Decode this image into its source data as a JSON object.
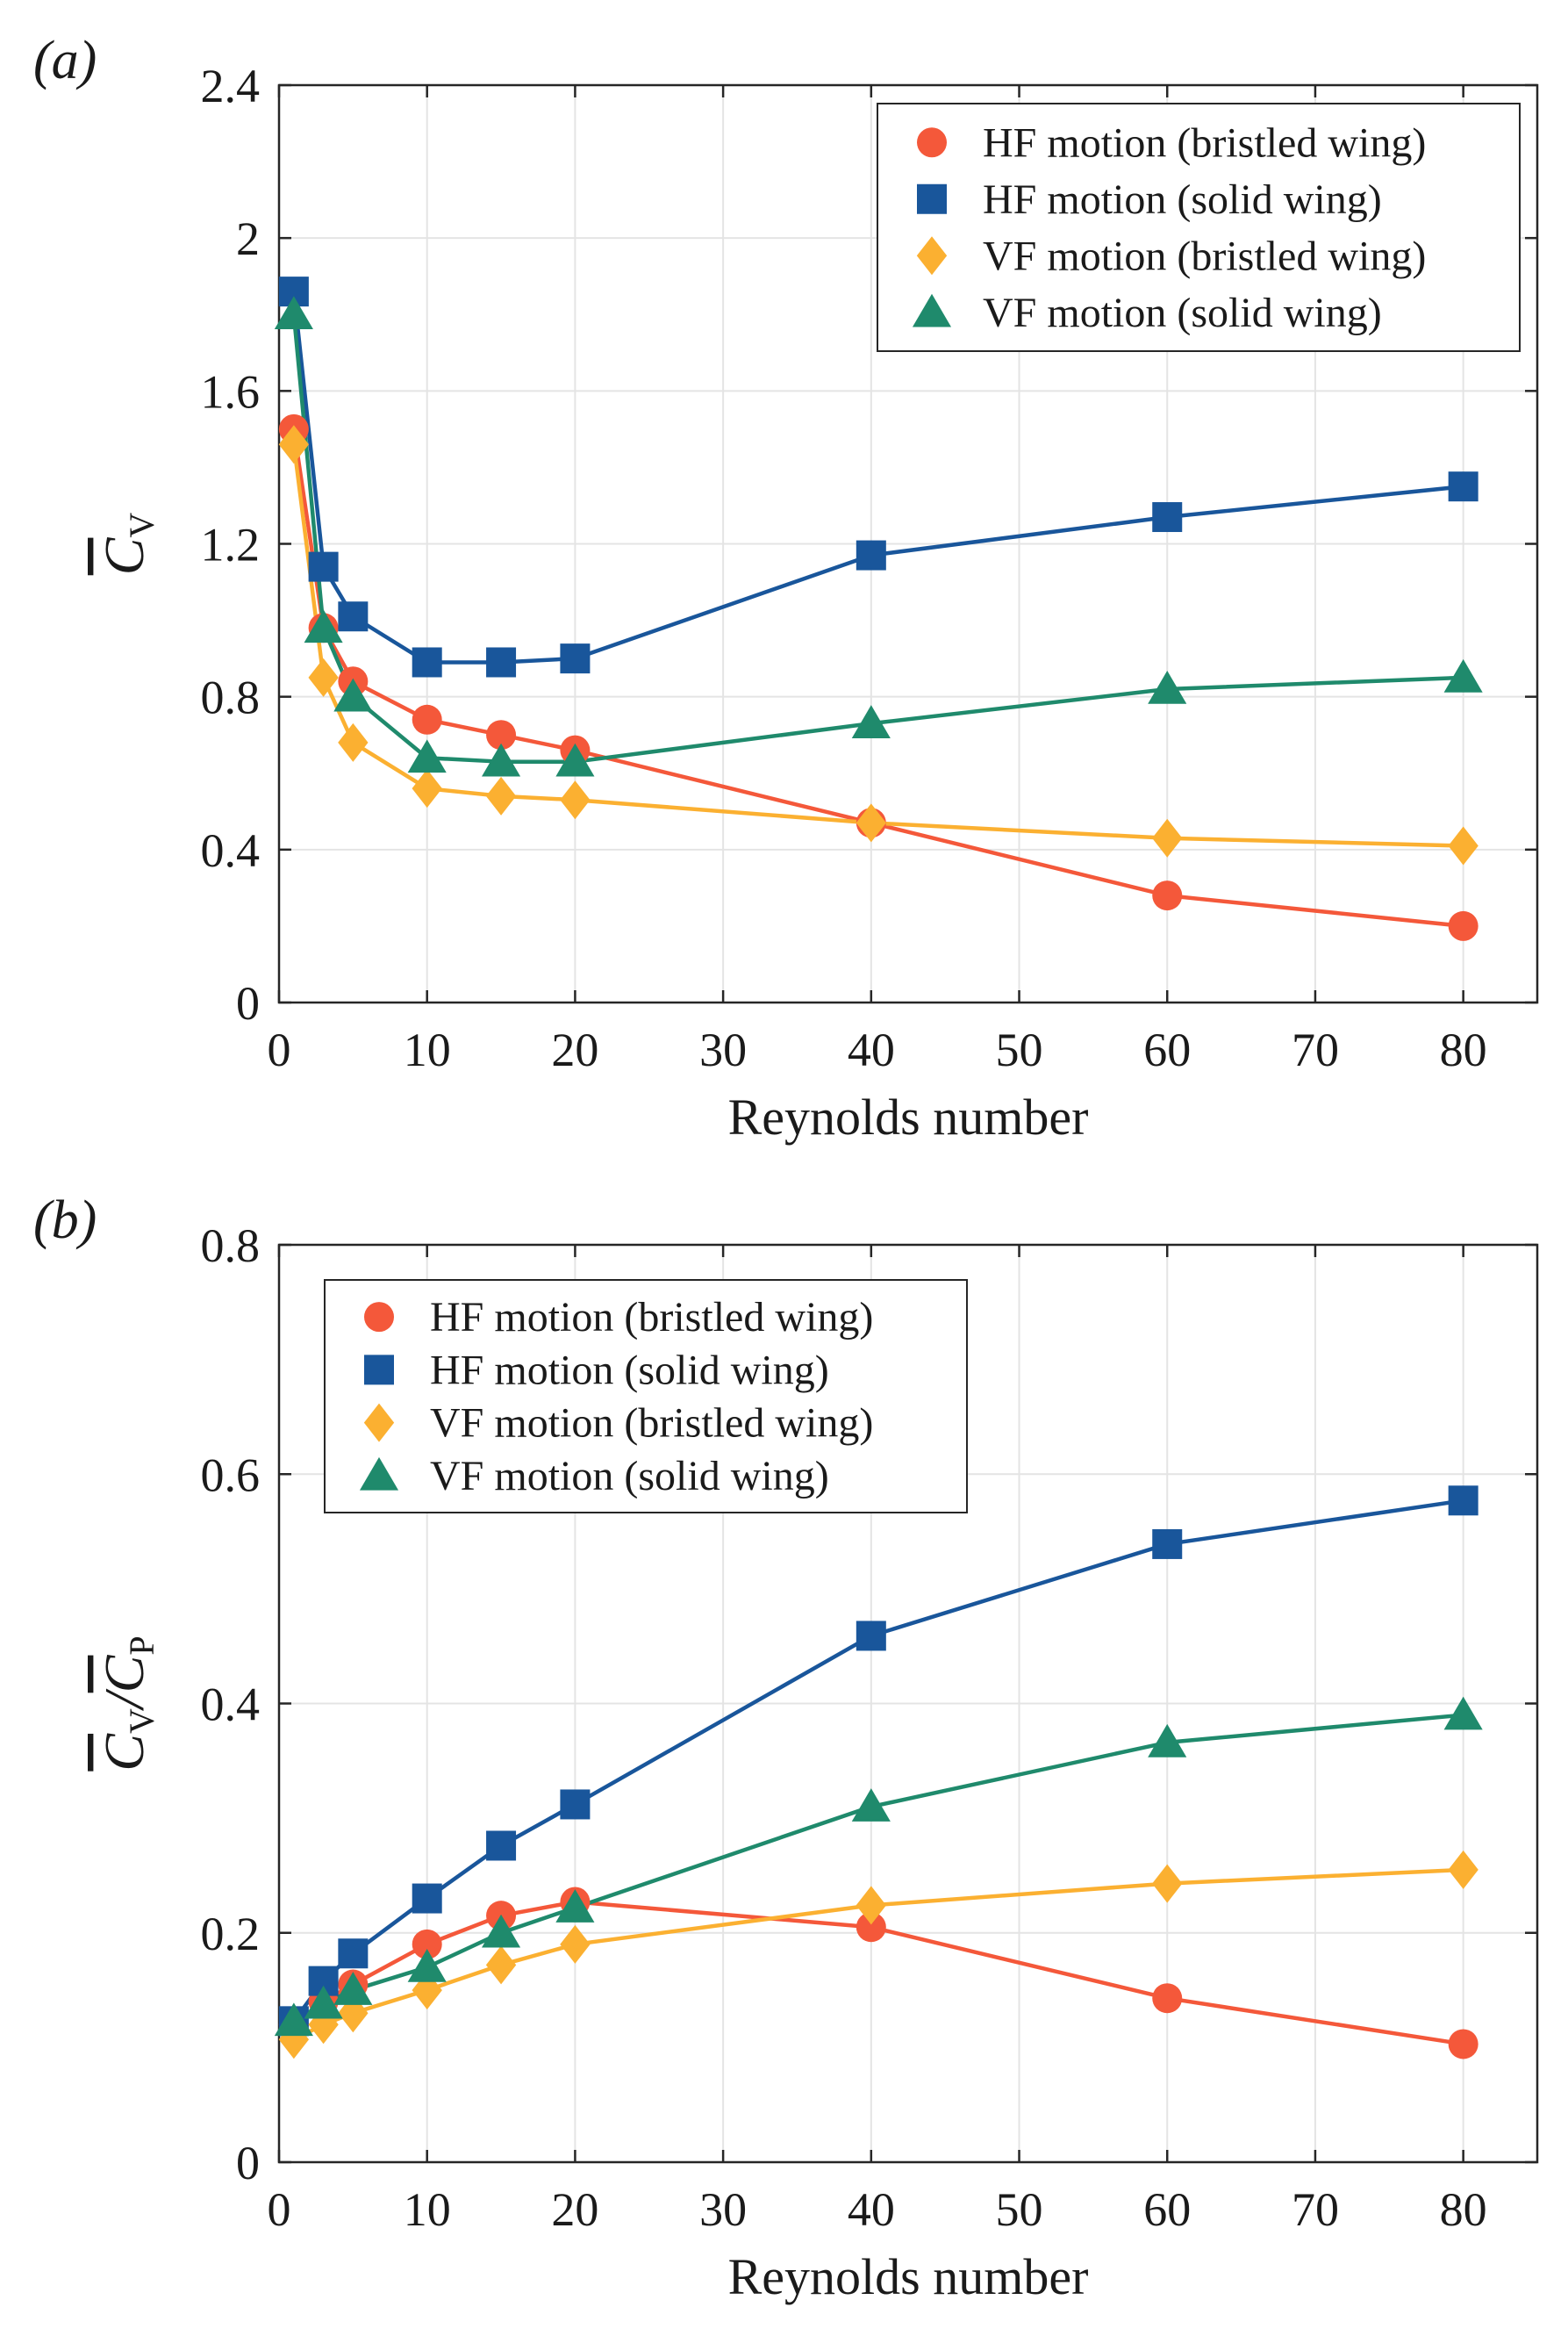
{
  "chart_data": [
    {
      "type": "line",
      "panel_label": "a",
      "xlabel": "Reynolds number",
      "ylabel": {
        "symbol": "C",
        "sub": "V"
      },
      "xlim": [
        0,
        85
      ],
      "ylim": [
        0,
        2.4
      ],
      "xticks": [
        0,
        10,
        20,
        30,
        40,
        50,
        60,
        70,
        80
      ],
      "yticks": [
        0,
        0.4,
        0.8,
        1.2,
        1.6,
        2,
        2.4
      ],
      "ytick_labels": [
        "0",
        "0.4",
        "0.8",
        "1.2",
        "1.6",
        "2",
        "2.4"
      ],
      "grid": true,
      "legend_position": "top-right",
      "x": [
        1,
        3,
        5,
        10,
        15,
        20,
        40,
        60,
        80
      ],
      "series": [
        {
          "name": "HF motion (bristled wing)",
          "marker": "circle",
          "color": "#f4583a",
          "values": [
            1.5,
            0.98,
            0.84,
            0.74,
            0.7,
            0.66,
            0.47,
            0.28,
            0.2
          ]
        },
        {
          "name": "HF motion (solid wing)",
          "marker": "square",
          "color": "#19569b",
          "values": [
            1.86,
            1.14,
            1.01,
            0.89,
            0.89,
            0.9,
            1.17,
            1.27,
            1.35
          ]
        },
        {
          "name": "VF motion (bristled wing)",
          "marker": "diamond",
          "color": "#fbb031",
          "values": [
            1.46,
            0.85,
            0.68,
            0.56,
            0.54,
            0.53,
            0.47,
            0.43,
            0.41
          ]
        },
        {
          "name": "VF motion (solid wing)",
          "marker": "triangle",
          "color": "#1f8a6c",
          "values": [
            1.8,
            0.98,
            0.8,
            0.64,
            0.63,
            0.63,
            0.73,
            0.82,
            0.85
          ]
        }
      ]
    },
    {
      "type": "line",
      "panel_label": "b",
      "xlabel": "Reynolds number",
      "ylabel": {
        "symbol": "C",
        "sub": "V",
        "symbol2": "C",
        "sub2": "P",
        "separator": "/"
      },
      "xlim": [
        0,
        85
      ],
      "ylim": [
        0,
        0.8
      ],
      "xticks": [
        0,
        10,
        20,
        30,
        40,
        50,
        60,
        70,
        80
      ],
      "yticks": [
        0,
        0.2,
        0.4,
        0.6,
        0.8
      ],
      "ytick_labels": [
        "0",
        "0.2",
        "0.4",
        "0.6",
        "0.8"
      ],
      "grid": true,
      "legend_position": "top-left",
      "x": [
        1,
        3,
        5,
        10,
        15,
        20,
        40,
        60,
        80
      ],
      "series": [
        {
          "name": "HF motion (bristled wing)",
          "marker": "circle",
          "color": "#f4583a",
          "values": [
            0.12,
            0.14,
            0.155,
            0.19,
            0.215,
            0.227,
            0.205,
            0.143,
            0.103
          ]
        },
        {
          "name": "HF motion (solid wing)",
          "marker": "square",
          "color": "#19569b",
          "values": [
            0.123,
            0.158,
            0.182,
            0.23,
            0.276,
            0.312,
            0.459,
            0.539,
            0.577
          ]
        },
        {
          "name": "VF motion (bristled wing)",
          "marker": "diamond",
          "color": "#fbb031",
          "values": [
            0.107,
            0.12,
            0.13,
            0.15,
            0.172,
            0.19,
            0.224,
            0.243,
            0.255
          ]
        },
        {
          "name": "VF motion (solid wing)",
          "marker": "triangle",
          "color": "#1f8a6c",
          "values": [
            0.123,
            0.138,
            0.15,
            0.17,
            0.2,
            0.222,
            0.31,
            0.366,
            0.39
          ]
        }
      ]
    }
  ]
}
